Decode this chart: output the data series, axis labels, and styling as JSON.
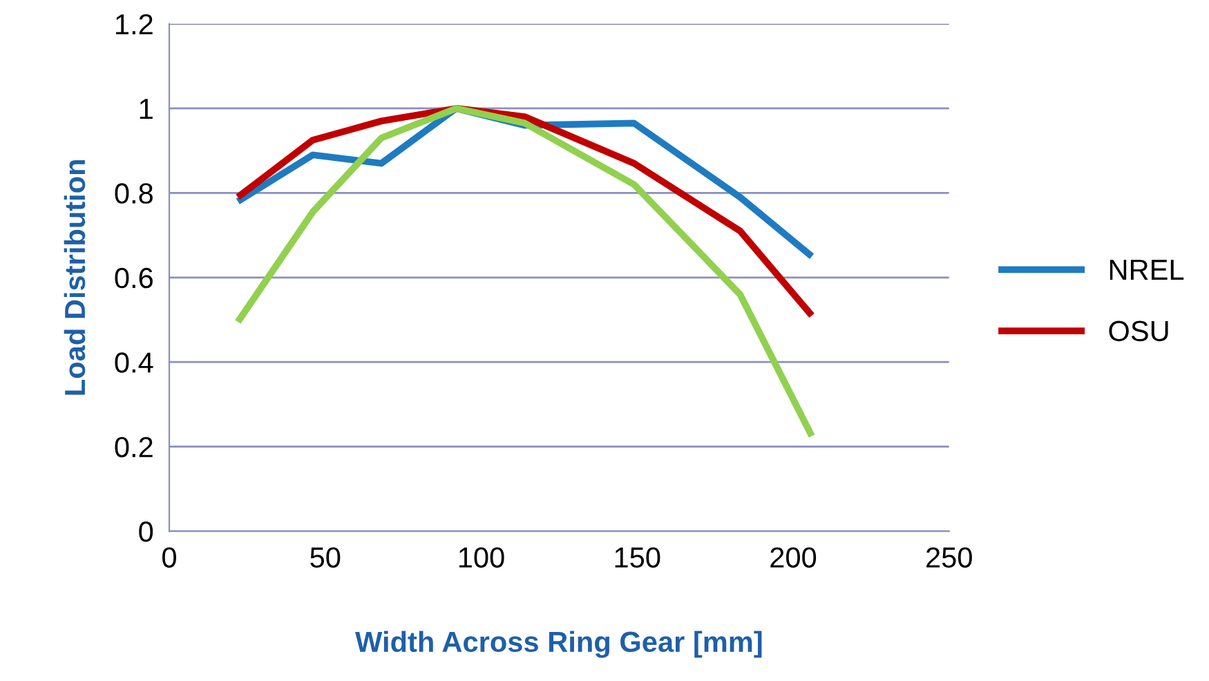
{
  "chart_data": {
    "type": "line",
    "xlabel": "Width Across Ring Gear [mm]",
    "ylabel": "Load Distribution",
    "x": [
      22,
      46,
      68,
      92,
      114,
      149,
      183,
      206
    ],
    "series": [
      {
        "name": "NREL",
        "color": "#1f7bc1",
        "values": [
          0.78,
          0.89,
          0.87,
          1.0,
          0.96,
          0.965,
          0.79,
          0.65
        ]
      },
      {
        "name": "OSU",
        "color": "#c00000",
        "values": [
          0.79,
          0.925,
          0.97,
          1.0,
          0.98,
          0.87,
          0.71,
          0.51
        ]
      },
      {
        "color": "#92d050",
        "values": [
          0.495,
          0.755,
          0.93,
          1.0,
          0.965,
          0.82,
          0.56,
          0.225
        ]
      }
    ],
    "xlim": [
      0,
      250
    ],
    "xticks": [
      0,
      50,
      100,
      150,
      200,
      250
    ],
    "ylim": [
      0,
      1.2
    ],
    "yticks": [
      0,
      0.2,
      0.4,
      0.6,
      0.8,
      1,
      1.2
    ],
    "grid": "y",
    "legend": "right",
    "marker": "none",
    "line_style": "solid"
  }
}
